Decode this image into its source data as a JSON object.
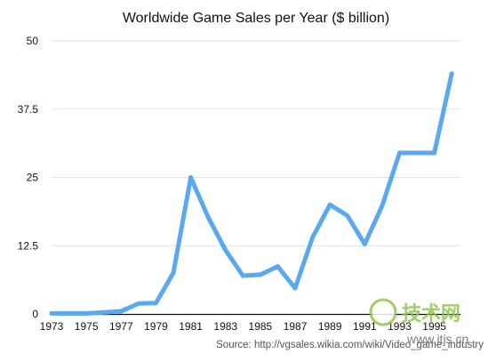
{
  "chart_data": {
    "type": "line",
    "title": "Worldwide Game Sales per Year ($ billion)",
    "xlabel": "",
    "ylabel": "",
    "x": [
      1973,
      1974,
      1975,
      1976,
      1977,
      1978,
      1979,
      1980,
      1981,
      1982,
      1983,
      1984,
      1985,
      1986,
      1987,
      1988,
      1989,
      1990,
      1991,
      1992,
      1993,
      1994,
      1995,
      1996
    ],
    "series": [
      {
        "name": "",
        "values": [
          0.1,
          0.1,
          0.1,
          0.3,
          0.5,
          1.9,
          2.0,
          7.5,
          25.0,
          17.7,
          11.7,
          7.0,
          7.2,
          8.7,
          4.7,
          14.0,
          20.0,
          18.0,
          12.8,
          19.8,
          29.5,
          29.5,
          29.5,
          44.0
        ]
      }
    ],
    "xlim": [
      1973,
      1996.5
    ],
    "ylim": [
      0,
      50
    ],
    "yticks": [
      "0",
      "12.5",
      "25",
      "37.5",
      "50"
    ],
    "ytick_values": [
      0,
      12.5,
      25,
      37.5,
      50
    ],
    "xticks": [
      "1973",
      "1975",
      "1977",
      "1979",
      "1981",
      "1983",
      "1985",
      "1987",
      "1989",
      "1991",
      "1993",
      "1995"
    ],
    "xtick_values": [
      1973,
      1975,
      1977,
      1979,
      1981,
      1983,
      1985,
      1987,
      1989,
      1991,
      1993,
      1995
    ],
    "grid": true,
    "legend": "none",
    "line_color": "#5aa9f0",
    "grid_color": "#e3e3e3"
  },
  "source_text": "Source: http://vgsales.wikia.com/wiki/Video_game_industry",
  "watermark": {
    "text": "技术网",
    "url": "www.itjs.cn",
    "color": "#8fc64a"
  }
}
